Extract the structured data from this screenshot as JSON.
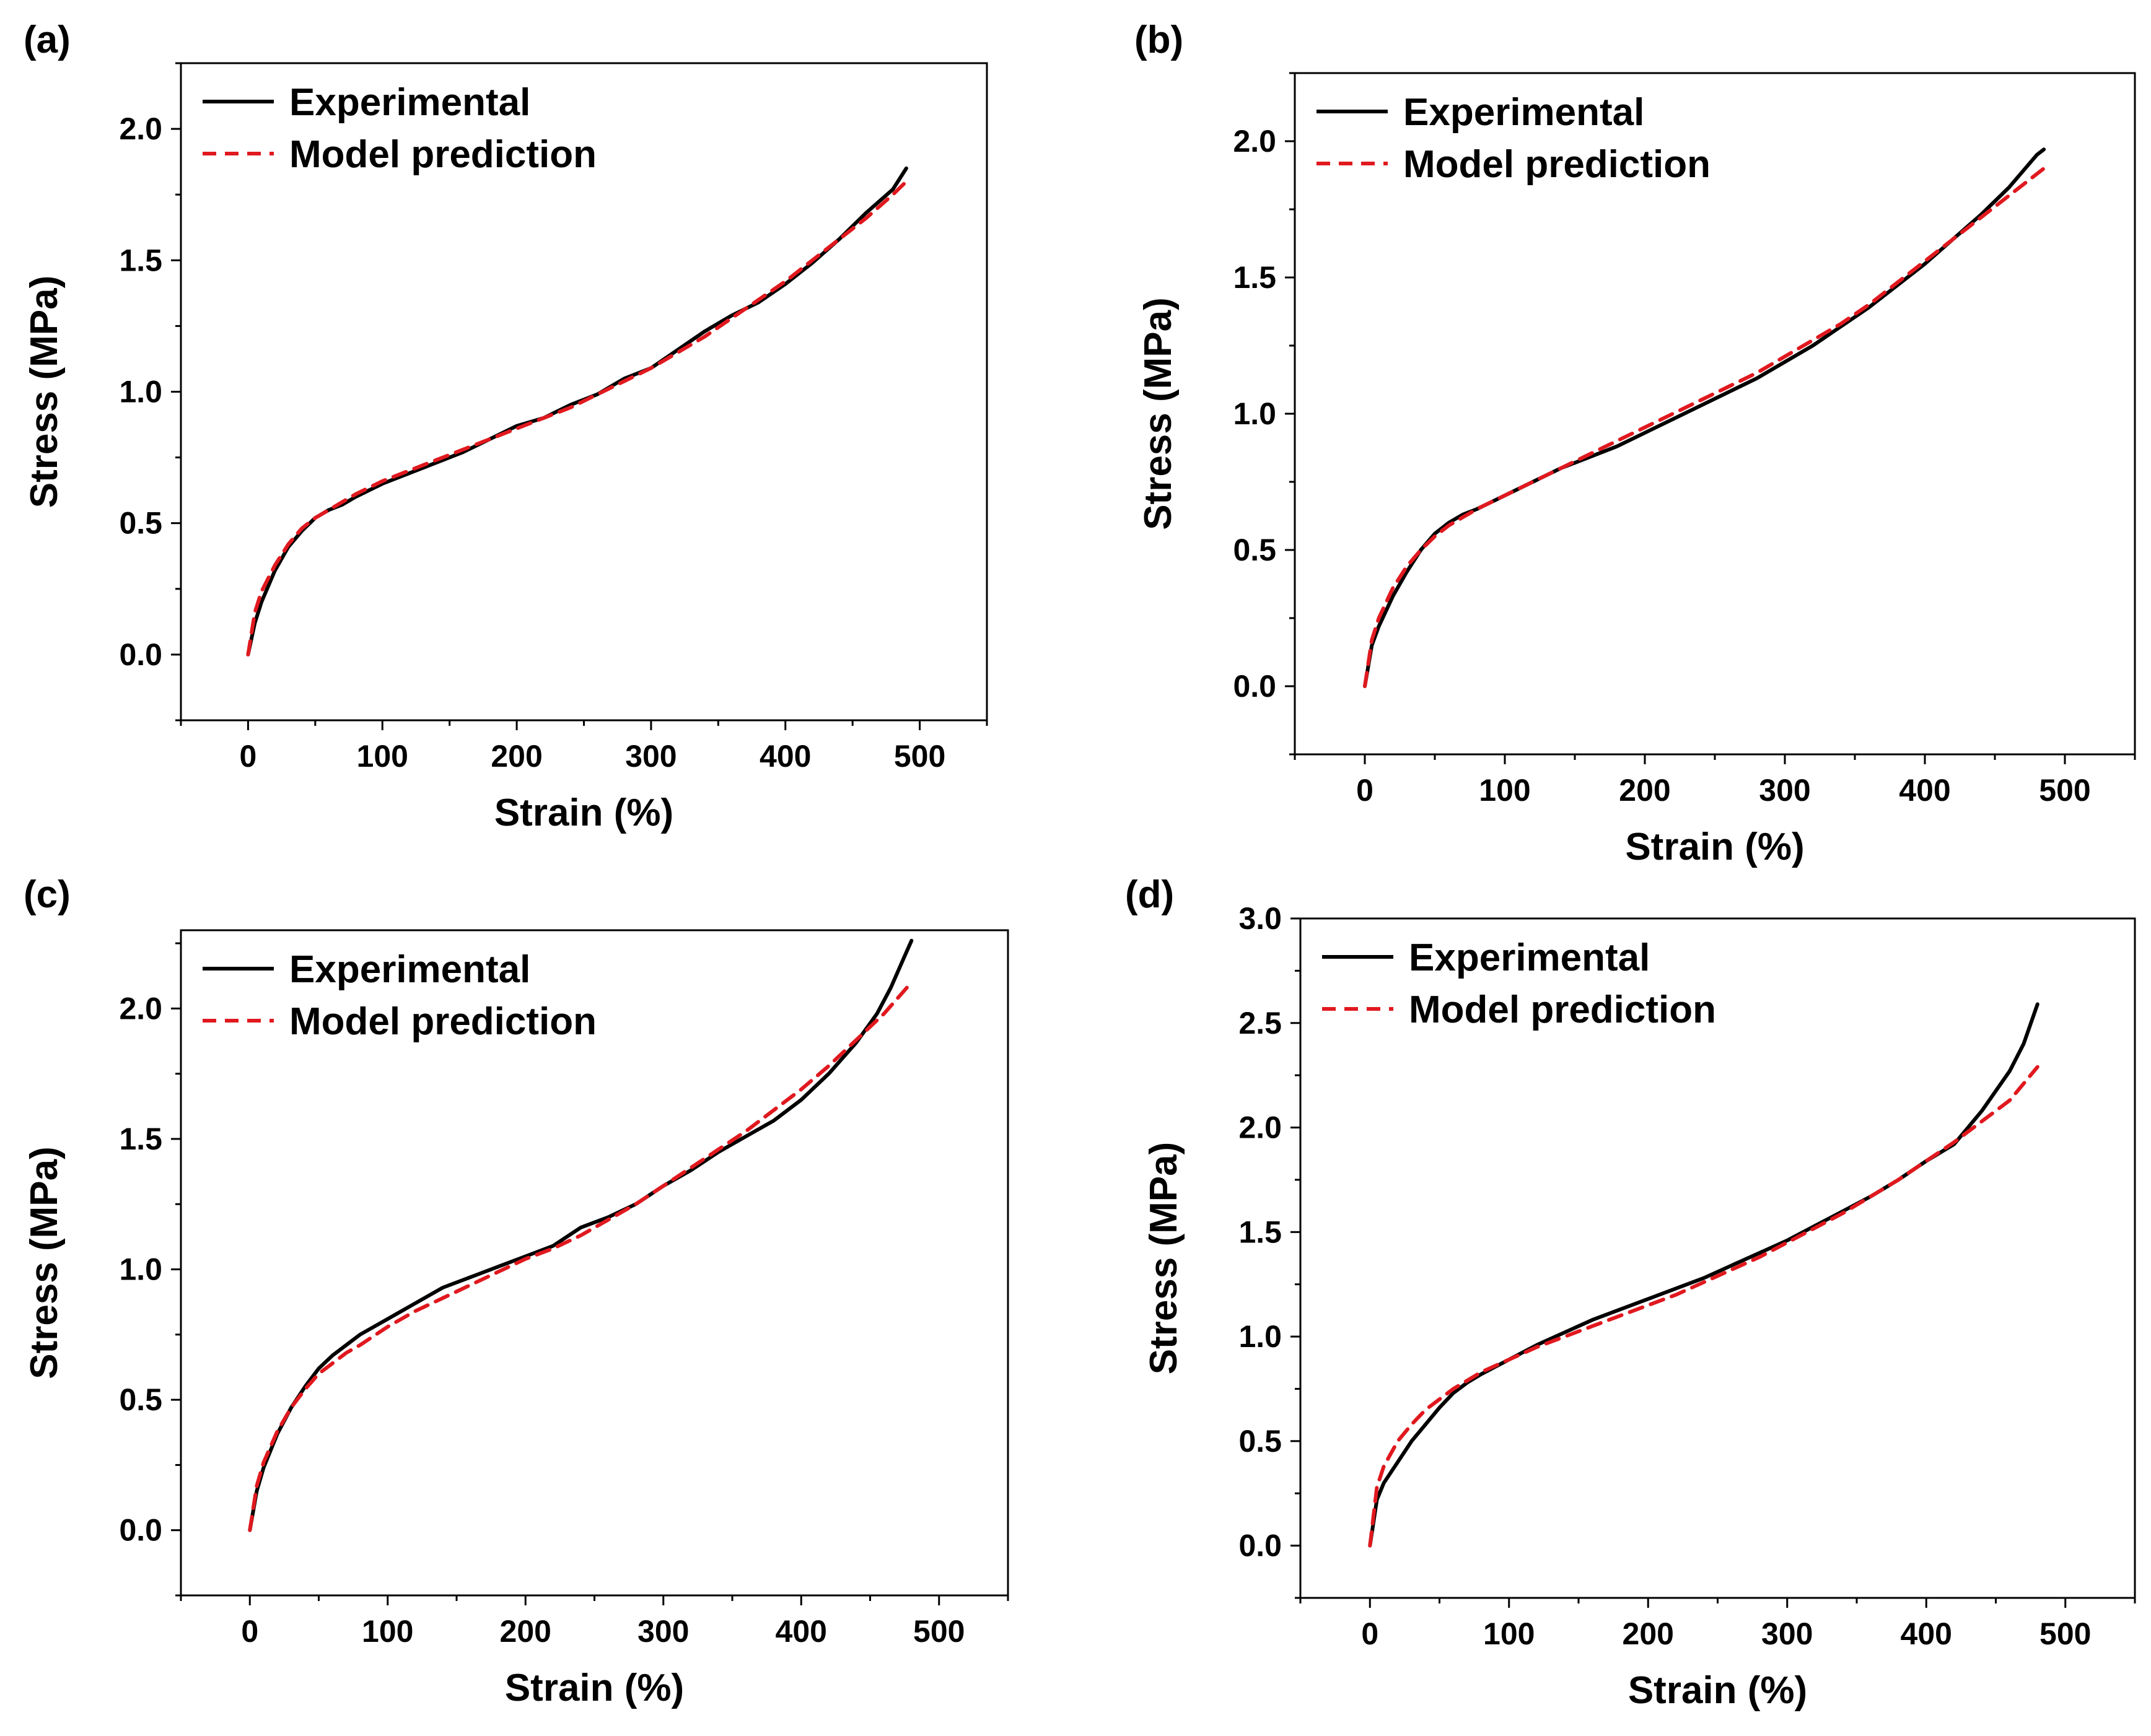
{
  "figure": {
    "colors": {
      "experimental": "#000000",
      "model": "#e0191f",
      "axes": "#000000",
      "background": "#ffffff"
    }
  },
  "chart_data": [
    {
      "id": "a",
      "panel_label": "(a)",
      "type": "line",
      "xlabel": "Strain (%)",
      "ylabel": "Stress (MPa)",
      "xlim": [
        -50,
        550
      ],
      "ylim": [
        -0.25,
        2.25
      ],
      "xticks": [
        0,
        100,
        200,
        300,
        400,
        500
      ],
      "xtick_labels": [
        "0",
        "100",
        "200",
        "300",
        "400",
        "500"
      ],
      "yticks": [
        0.0,
        0.5,
        1.0,
        1.5,
        2.0
      ],
      "ytick_labels": [
        "0.0",
        "0.5",
        "1.0",
        "1.5",
        "2.0"
      ],
      "legend": {
        "position": "top-left",
        "entries": [
          "Experimental",
          "Model prediction"
        ]
      },
      "series": [
        {
          "name": "Experimental",
          "style": "solid",
          "x": [
            0,
            5,
            10,
            20,
            30,
            40,
            50,
            60,
            70,
            80,
            100,
            120,
            140,
            160,
            180,
            200,
            220,
            240,
            260,
            280,
            300,
            320,
            340,
            360,
            380,
            400,
            420,
            440,
            460,
            480,
            490
          ],
          "y": [
            0.0,
            0.12,
            0.2,
            0.32,
            0.41,
            0.47,
            0.52,
            0.55,
            0.57,
            0.6,
            0.65,
            0.69,
            0.73,
            0.77,
            0.82,
            0.87,
            0.9,
            0.95,
            0.99,
            1.05,
            1.09,
            1.16,
            1.23,
            1.29,
            1.34,
            1.41,
            1.49,
            1.58,
            1.68,
            1.77,
            1.85
          ]
        },
        {
          "name": "Model prediction",
          "style": "dashed",
          "x": [
            0,
            5,
            10,
            20,
            30,
            40,
            50,
            60,
            70,
            80,
            100,
            120,
            140,
            160,
            180,
            200,
            220,
            240,
            260,
            280,
            300,
            320,
            340,
            360,
            380,
            400,
            420,
            440,
            460,
            480,
            490
          ],
          "y": [
            0.0,
            0.16,
            0.24,
            0.34,
            0.42,
            0.48,
            0.52,
            0.55,
            0.58,
            0.61,
            0.66,
            0.7,
            0.74,
            0.78,
            0.82,
            0.86,
            0.9,
            0.94,
            0.99,
            1.04,
            1.09,
            1.15,
            1.21,
            1.28,
            1.35,
            1.42,
            1.5,
            1.58,
            1.66,
            1.75,
            1.8
          ]
        }
      ]
    },
    {
      "id": "b",
      "panel_label": "(b)",
      "type": "line",
      "xlabel": "Strain (%)",
      "ylabel": "Stress (MPa)",
      "xlim": [
        -50,
        550
      ],
      "ylim": [
        -0.25,
        2.25
      ],
      "xticks": [
        0,
        100,
        200,
        300,
        400,
        500
      ],
      "xtick_labels": [
        "0",
        "100",
        "200",
        "300",
        "400",
        "500"
      ],
      "yticks": [
        0.0,
        0.5,
        1.0,
        1.5,
        2.0
      ],
      "ytick_labels": [
        "0.0",
        "0.5",
        "1.0",
        "1.5",
        "2.0"
      ],
      "legend": {
        "position": "top-left",
        "entries": [
          "Experimental",
          "Model prediction"
        ]
      },
      "series": [
        {
          "name": "Experimental",
          "style": "solid",
          "x": [
            0,
            5,
            10,
            20,
            30,
            40,
            50,
            60,
            70,
            80,
            100,
            120,
            140,
            160,
            180,
            200,
            220,
            240,
            260,
            280,
            300,
            320,
            340,
            360,
            380,
            400,
            420,
            440,
            460,
            480,
            485
          ],
          "y": [
            0.0,
            0.15,
            0.22,
            0.33,
            0.42,
            0.5,
            0.56,
            0.6,
            0.63,
            0.65,
            0.7,
            0.75,
            0.8,
            0.84,
            0.88,
            0.93,
            0.98,
            1.03,
            1.08,
            1.13,
            1.19,
            1.25,
            1.32,
            1.39,
            1.47,
            1.55,
            1.64,
            1.73,
            1.83,
            1.95,
            1.97
          ]
        },
        {
          "name": "Model prediction",
          "style": "dashed",
          "x": [
            0,
            5,
            10,
            20,
            30,
            40,
            50,
            60,
            70,
            80,
            100,
            120,
            140,
            160,
            180,
            200,
            220,
            240,
            260,
            280,
            300,
            320,
            340,
            360,
            380,
            400,
            420,
            440,
            460,
            480,
            485
          ],
          "y": [
            0.0,
            0.17,
            0.25,
            0.36,
            0.44,
            0.5,
            0.55,
            0.59,
            0.62,
            0.65,
            0.7,
            0.75,
            0.8,
            0.85,
            0.9,
            0.95,
            1.0,
            1.05,
            1.1,
            1.15,
            1.21,
            1.27,
            1.33,
            1.4,
            1.48,
            1.56,
            1.64,
            1.72,
            1.8,
            1.88,
            1.9
          ]
        }
      ]
    },
    {
      "id": "c",
      "panel_label": "(c)",
      "type": "line",
      "xlabel": "Strain (%)",
      "ylabel": "Stress (MPa)",
      "xlim": [
        -50,
        550
      ],
      "ylim": [
        -0.25,
        2.3
      ],
      "xticks": [
        0,
        100,
        200,
        300,
        400,
        500
      ],
      "xtick_labels": [
        "0",
        "100",
        "200",
        "300",
        "400",
        "500"
      ],
      "yticks": [
        0.0,
        0.5,
        1.0,
        1.5,
        2.0
      ],
      "ytick_labels": [
        "0.0",
        "0.5",
        "1.0",
        "1.5",
        "2.0"
      ],
      "legend": {
        "position": "top-left",
        "entries": [
          "Experimental",
          "Model prediction"
        ]
      },
      "series": [
        {
          "name": "Experimental",
          "style": "solid",
          "x": [
            0,
            5,
            10,
            20,
            30,
            40,
            50,
            60,
            70,
            80,
            100,
            120,
            140,
            160,
            180,
            200,
            220,
            240,
            260,
            280,
            300,
            320,
            340,
            360,
            380,
            400,
            420,
            440,
            455,
            465,
            475,
            480
          ],
          "y": [
            0.0,
            0.15,
            0.24,
            0.37,
            0.47,
            0.55,
            0.62,
            0.67,
            0.71,
            0.75,
            0.81,
            0.87,
            0.93,
            0.97,
            1.01,
            1.05,
            1.09,
            1.16,
            1.2,
            1.25,
            1.32,
            1.38,
            1.45,
            1.51,
            1.57,
            1.65,
            1.75,
            1.87,
            1.98,
            2.08,
            2.2,
            2.26
          ]
        },
        {
          "name": "Model prediction",
          "style": "dashed",
          "x": [
            0,
            5,
            10,
            20,
            30,
            40,
            50,
            60,
            70,
            80,
            100,
            120,
            140,
            160,
            180,
            200,
            220,
            240,
            260,
            280,
            300,
            320,
            340,
            360,
            380,
            400,
            420,
            440,
            460,
            480
          ],
          "y": [
            0.0,
            0.17,
            0.26,
            0.38,
            0.47,
            0.54,
            0.6,
            0.64,
            0.68,
            0.71,
            0.78,
            0.84,
            0.89,
            0.94,
            0.99,
            1.04,
            1.08,
            1.13,
            1.19,
            1.25,
            1.32,
            1.39,
            1.46,
            1.53,
            1.61,
            1.69,
            1.78,
            1.88,
            1.98,
            2.1
          ]
        }
      ]
    },
    {
      "id": "d",
      "panel_label": "(d)",
      "type": "line",
      "xlabel": "Strain (%)",
      "ylabel": "Stress (MPa)",
      "xlim": [
        -50,
        550
      ],
      "ylim": [
        -0.25,
        3.0
      ],
      "xticks": [
        0,
        100,
        200,
        300,
        400,
        500
      ],
      "xtick_labels": [
        "0",
        "100",
        "200",
        "300",
        "400",
        "500"
      ],
      "yticks": [
        0.0,
        0.5,
        1.0,
        1.5,
        2.0,
        2.5,
        3.0
      ],
      "ytick_labels": [
        "0.0",
        "0.5",
        "1.0",
        "1.5",
        "2.0",
        "2.5",
        "3.0"
      ],
      "legend": {
        "position": "top-left",
        "entries": [
          "Experimental",
          "Model prediction"
        ]
      },
      "series": [
        {
          "name": "Experimental",
          "style": "solid",
          "x": [
            0,
            5,
            10,
            20,
            30,
            40,
            50,
            60,
            70,
            80,
            100,
            120,
            140,
            160,
            180,
            200,
            220,
            240,
            260,
            280,
            300,
            320,
            340,
            360,
            380,
            400,
            420,
            440,
            460,
            470,
            480
          ],
          "y": [
            0.0,
            0.22,
            0.3,
            0.4,
            0.5,
            0.58,
            0.66,
            0.73,
            0.78,
            0.82,
            0.89,
            0.96,
            1.02,
            1.08,
            1.13,
            1.18,
            1.23,
            1.28,
            1.34,
            1.4,
            1.46,
            1.53,
            1.6,
            1.67,
            1.75,
            1.84,
            1.92,
            2.08,
            2.27,
            2.4,
            2.59
          ]
        },
        {
          "name": "Model prediction",
          "style": "dashed",
          "x": [
            0,
            5,
            10,
            20,
            30,
            40,
            50,
            60,
            70,
            80,
            100,
            120,
            140,
            160,
            180,
            200,
            220,
            240,
            260,
            280,
            300,
            320,
            340,
            360,
            380,
            400,
            420,
            440,
            460,
            480
          ],
          "y": [
            0.0,
            0.28,
            0.38,
            0.5,
            0.58,
            0.65,
            0.7,
            0.75,
            0.79,
            0.83,
            0.89,
            0.95,
            1.0,
            1.05,
            1.1,
            1.15,
            1.2,
            1.26,
            1.32,
            1.38,
            1.45,
            1.52,
            1.59,
            1.67,
            1.75,
            1.84,
            1.93,
            2.03,
            2.13,
            2.29
          ]
        }
      ]
    }
  ]
}
